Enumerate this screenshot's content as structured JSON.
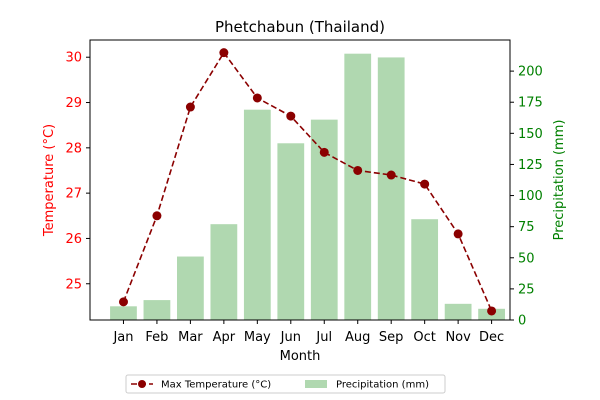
{
  "chart_data": {
    "type": "bar+line",
    "title": "Phetchabun (Thailand)",
    "xlabel": "Month",
    "categories": [
      "Jan",
      "Feb",
      "Mar",
      "Apr",
      "May",
      "Jun",
      "Jul",
      "Aug",
      "Sep",
      "Oct",
      "Nov",
      "Dec"
    ],
    "series": [
      {
        "name": "Max Temperature (°C)",
        "type": "line",
        "axis": "left",
        "values": [
          24.6,
          26.5,
          28.9,
          30.1,
          29.1,
          28.7,
          27.9,
          27.5,
          27.4,
          27.2,
          26.1,
          24.4
        ]
      },
      {
        "name": "Precipitation (mm)",
        "type": "bar",
        "axis": "right",
        "values": [
          11,
          16,
          51,
          77,
          169,
          142,
          161,
          214,
          211,
          81,
          13,
          9
        ]
      }
    ],
    "left_axis": {
      "label": "Temperature (°C)",
      "ylim": [
        24.2,
        30.38
      ],
      "ticks": [
        25,
        26,
        27,
        28,
        29,
        30
      ]
    },
    "right_axis": {
      "label": "Precipitation (mm)",
      "ylim": [
        0,
        225
      ],
      "ticks": [
        0,
        25,
        50,
        75,
        100,
        125,
        150,
        175,
        200
      ]
    },
    "legend": {
      "placement": "bottom-center"
    },
    "grid": false,
    "colors": {
      "line": "#8b0000",
      "bars": "#b0d8b0",
      "left_axis": "#ff0000",
      "right_axis": "#008000",
      "text": "#000000"
    }
  }
}
